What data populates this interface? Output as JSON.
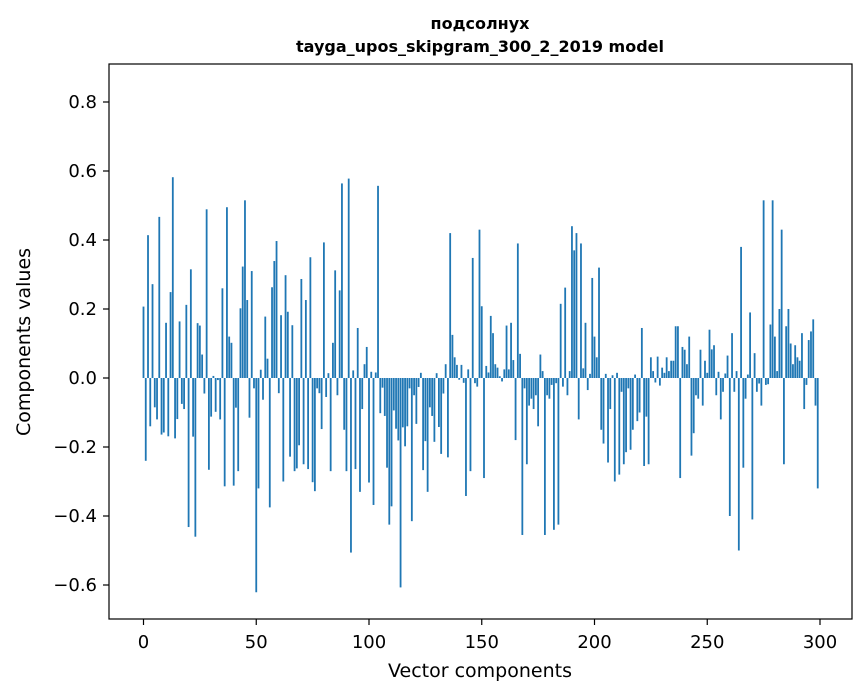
{
  "chart_data": {
    "type": "bar",
    "title": "подсолнух",
    "subtitle": "tayga_upos_skipgram_300_2_2019 model",
    "xlabel": "Vector components",
    "ylabel": "Components values",
    "xlim": [
      -15,
      314
    ],
    "ylim": [
      -0.7,
      0.91
    ],
    "x_ticks": [
      0,
      50,
      100,
      150,
      200,
      250,
      300
    ],
    "x_tick_labels": [
      "0",
      "50",
      "100",
      "150",
      "200",
      "250",
      "300"
    ],
    "y_ticks": [
      -0.6,
      -0.4,
      -0.2,
      0.0,
      0.2,
      0.4,
      0.6,
      0.8
    ],
    "y_tick_labels": [
      "−0.6",
      "−0.4",
      "−0.2",
      "0.0",
      "0.2",
      "0.4",
      "0.6",
      "0.8"
    ],
    "bar_color": "#1f77b4",
    "grid": false,
    "values": [
      0.207,
      -0.24,
      0.414,
      -0.14,
      0.272,
      -0.085,
      -0.12,
      0.467,
      -0.164,
      -0.158,
      0.16,
      -0.169,
      0.249,
      0.582,
      -0.175,
      -0.119,
      0.164,
      -0.075,
      -0.09,
      0.212,
      -0.432,
      0.315,
      -0.17,
      -0.46,
      0.159,
      0.152,
      0.068,
      -0.045,
      0.489,
      -0.266,
      -0.112,
      0.006,
      -0.098,
      -0.006,
      -0.12,
      0.26,
      -0.314,
      0.495,
      0.12,
      0.102,
      -0.312,
      -0.086,
      -0.27,
      0.202,
      0.323,
      0.515,
      0.226,
      -0.115,
      0.31,
      -0.03,
      -0.621,
      -0.32,
      0.024,
      -0.063,
      0.178,
      0.056,
      -0.375,
      0.263,
      0.339,
      0.397,
      -0.044,
      0.182,
      -0.3,
      0.298,
      0.192,
      -0.228,
      0.153,
      -0.27,
      -0.262,
      -0.195,
      0.287,
      -0.25,
      0.226,
      -0.264,
      0.35,
      -0.302,
      -0.328,
      -0.03,
      -0.044,
      -0.148,
      0.393,
      -0.055,
      0.014,
      -0.27,
      0.102,
      0.312,
      -0.05,
      0.254,
      0.564,
      -0.15,
      -0.27,
      0.578,
      -0.506,
      0.022,
      -0.264,
      0.145,
      -0.33,
      -0.09,
      0.04,
      0.09,
      -0.303,
      0.018,
      -0.368,
      0.016,
      0.557,
      -0.102,
      -0.028,
      -0.11,
      -0.26,
      -0.425,
      -0.372,
      -0.094,
      -0.147,
      -0.181,
      -0.607,
      -0.143,
      -0.198,
      -0.14,
      -0.03,
      -0.415,
      -0.05,
      -0.133,
      -0.026,
      0.015,
      -0.267,
      -0.183,
      -0.33,
      -0.085,
      -0.11,
      -0.185,
      0.014,
      -0.142,
      -0.22,
      -0.045,
      0.04,
      -0.23,
      0.42,
      0.125,
      0.06,
      0.038,
      -0.005,
      0.038,
      -0.014,
      -0.342,
      0.025,
      -0.27,
      0.348,
      -0.015,
      -0.025,
      0.43,
      0.208,
      -0.29,
      0.035,
      0.016,
      0.18,
      0.13,
      0.04,
      0.03,
      0.005,
      -0.01,
      0.025,
      0.152,
      0.025,
      0.16,
      0.052,
      -0.18,
      0.39,
      0.07,
      -0.455,
      -0.03,
      -0.25,
      -0.08,
      -0.06,
      -0.09,
      -0.05,
      -0.14,
      0.068,
      0.02,
      -0.455,
      -0.05,
      -0.06,
      -0.02,
      -0.44,
      -0.015,
      -0.425,
      0.215,
      -0.025,
      0.262,
      -0.05,
      0.02,
      0.44,
      0.37,
      0.42,
      -0.12,
      0.39,
      0.028,
      0.16,
      -0.035,
      0.012,
      0.29,
      0.12,
      0.06,
      0.32,
      -0.15,
      -0.19,
      0.012,
      -0.245,
      -0.09,
      0.008,
      -0.3,
      0.015,
      -0.28,
      -0.04,
      -0.25,
      -0.215,
      -0.03,
      -0.208,
      -0.15,
      0.01,
      -0.125,
      -0.1,
      0.145,
      -0.255,
      -0.112,
      -0.25,
      0.06,
      0.02,
      -0.013,
      0.062,
      -0.022,
      0.03,
      0.015,
      0.06,
      0.02,
      0.05,
      0.05,
      0.15,
      0.15,
      -0.29,
      0.09,
      0.082,
      0.04,
      0.12,
      -0.225,
      -0.16,
      -0.05,
      -0.06,
      0.082,
      -0.08,
      0.05,
      0.015,
      0.14,
      0.083,
      0.095,
      -0.05,
      0.018,
      -0.12,
      -0.04,
      0.013,
      0.065,
      -0.4,
      0.13,
      -0.04,
      0.02,
      -0.5,
      0.38,
      -0.26,
      -0.06,
      0.01,
      0.19,
      -0.41,
      0.072,
      -0.04,
      -0.016,
      -0.08,
      0.515,
      -0.02,
      -0.018,
      0.155,
      0.515,
      0.12,
      0.02,
      0.2,
      0.43,
      -0.25,
      0.15,
      0.2,
      0.1,
      0.04,
      0.095,
      0.06,
      0.05,
      0.13,
      -0.09,
      -0.02,
      0.11,
      0.135,
      0.17,
      -0.08,
      -0.32
    ]
  }
}
